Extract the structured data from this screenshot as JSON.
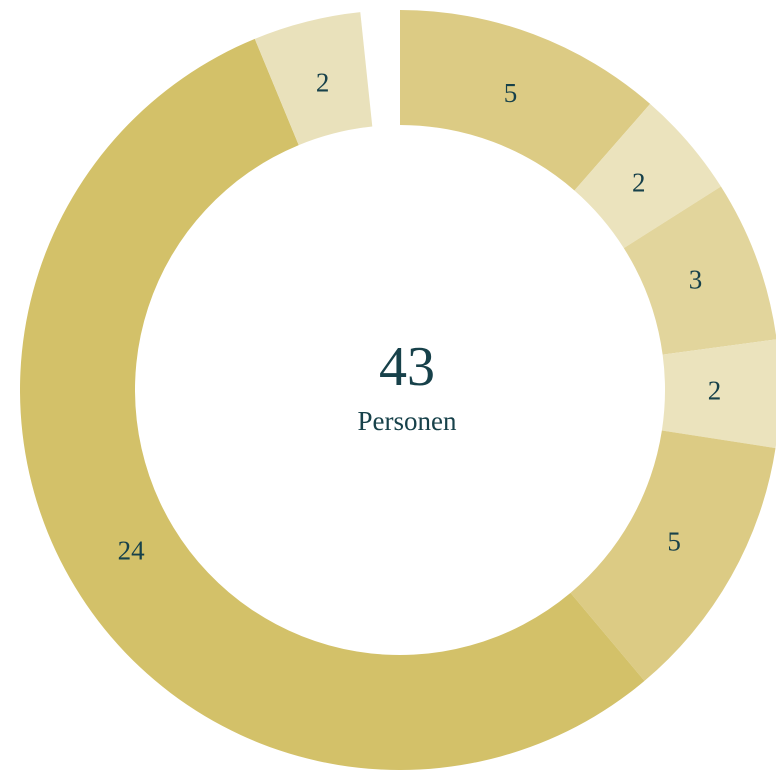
{
  "chart_data": {
    "type": "donut",
    "values": [
      5,
      2,
      3,
      2,
      5,
      24,
      2
    ],
    "colors": [
      "#dccb84",
      "#ebe3bd",
      "#e2d59c",
      "#ebe3bd",
      "#dccb84",
      "#d3c169",
      "#e9e1bb"
    ],
    "total": 43,
    "total_label": "Personen"
  }
}
